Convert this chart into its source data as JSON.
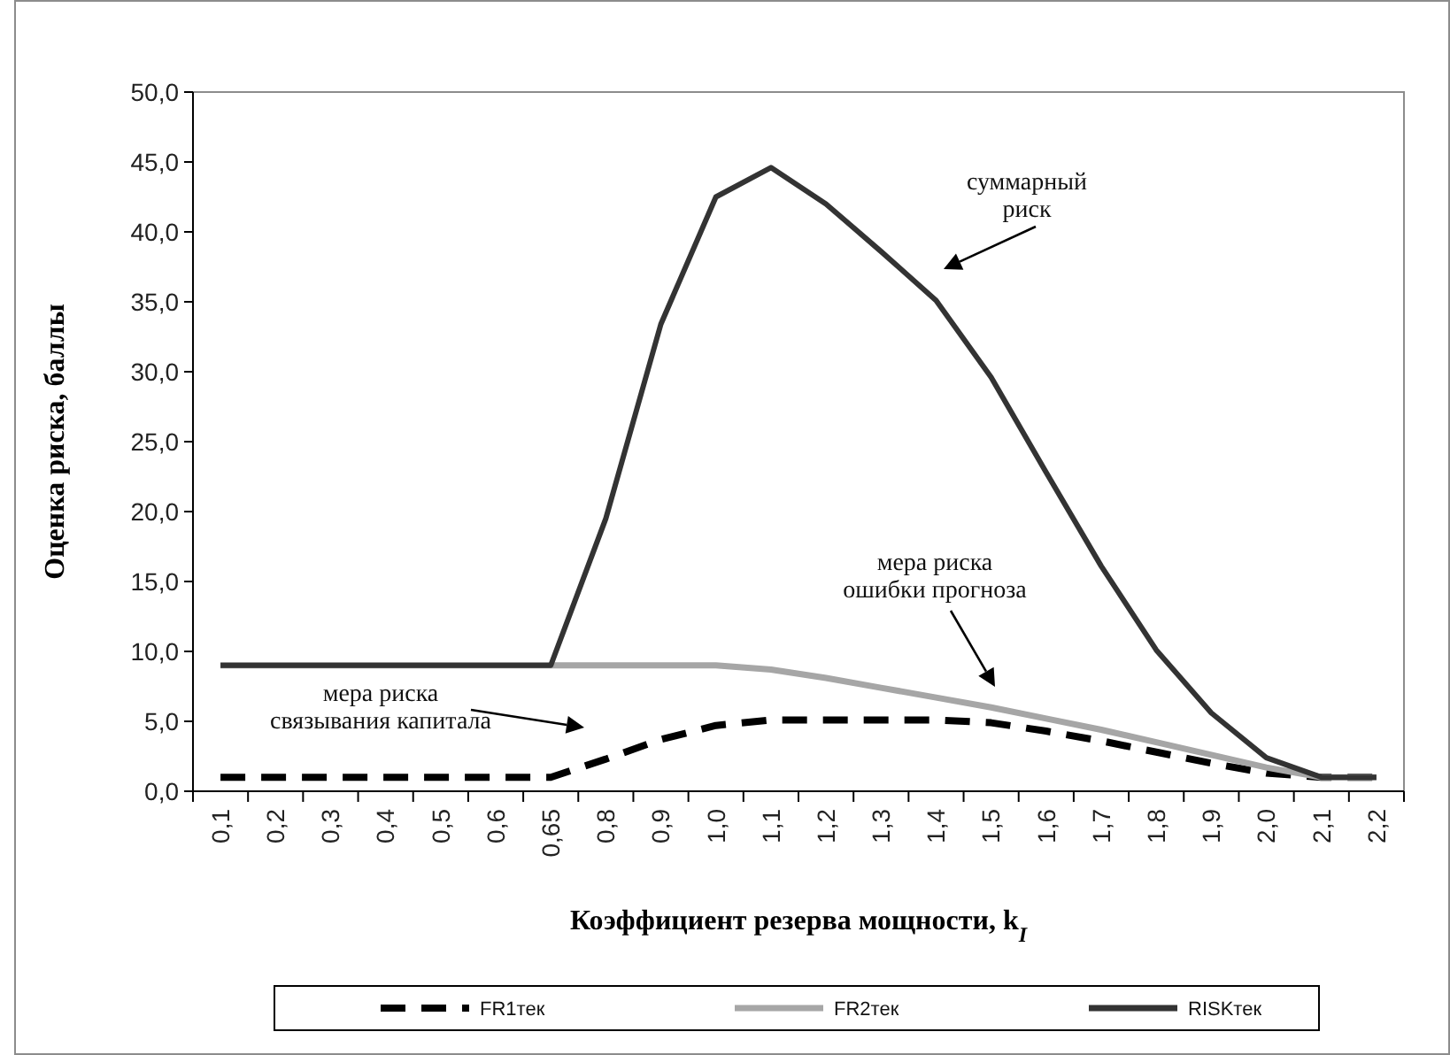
{
  "chart_data": {
    "type": "line",
    "xlabel": "Коэффициент резерва мощности, k$_{I}$",
    "ylabel": "Оценка риска, баллы",
    "categories": [
      "0,1",
      "0,2",
      "0,3",
      "0,4",
      "0,5",
      "0,6",
      "0,65",
      "0,8",
      "0,9",
      "1,0",
      "1,1",
      "1,2",
      "1,3",
      "1,4",
      "1,5",
      "1,6",
      "1,7",
      "1,8",
      "1,9",
      "2,0",
      "2,1",
      "2,2"
    ],
    "ylim": [
      0,
      50
    ],
    "yticks": [
      {
        "value": 0,
        "label": "0,0"
      },
      {
        "value": 5,
        "label": "5,0"
      },
      {
        "value": 10,
        "label": "10,0"
      },
      {
        "value": 15,
        "label": "15,0"
      },
      {
        "value": 20,
        "label": "20,0"
      },
      {
        "value": 25,
        "label": "25,0"
      },
      {
        "value": 30,
        "label": "30,0"
      },
      {
        "value": 35,
        "label": "35,0"
      },
      {
        "value": 40,
        "label": "40,0"
      },
      {
        "value": 45,
        "label": "45,0"
      },
      {
        "value": 50,
        "label": "50,0"
      }
    ],
    "series": [
      {
        "name": "FR1тек",
        "color": "#000000",
        "line_style": "dashed",
        "values": [
          1,
          1,
          1,
          1,
          1,
          1,
          1,
          2.3,
          3.7,
          4.7,
          5.1,
          5.1,
          5.1,
          5.1,
          4.9,
          4.3,
          3.6,
          2.8,
          2.0,
          1.3,
          1,
          1
        ]
      },
      {
        "name": "FR2тек",
        "color": "#a6a6a6",
        "line_style": "solid",
        "values": [
          9,
          9,
          9,
          9,
          9,
          9,
          9,
          9,
          9,
          9,
          8.7,
          8.1,
          7.4,
          6.7,
          6.0,
          5.2,
          4.4,
          3.5,
          2.6,
          1.7,
          1,
          1
        ]
      },
      {
        "name": "RISKтек",
        "color": "#333333",
        "line_style": "solid",
        "values": [
          9,
          9,
          9,
          9,
          9,
          9,
          9,
          19.5,
          33.4,
          42.5,
          44.6,
          42.0,
          38.6,
          35.1,
          29.6,
          22.8,
          16.1,
          10.1,
          5.6,
          2.4,
          1,
          1
        ]
      }
    ],
    "annotations": [
      "суммарный\nриск",
      "мера риска\nошибки прогноза",
      "мера риска\nсвязывания капитала"
    ],
    "legend": "bottom",
    "grid": false,
    "marker": "none"
  }
}
